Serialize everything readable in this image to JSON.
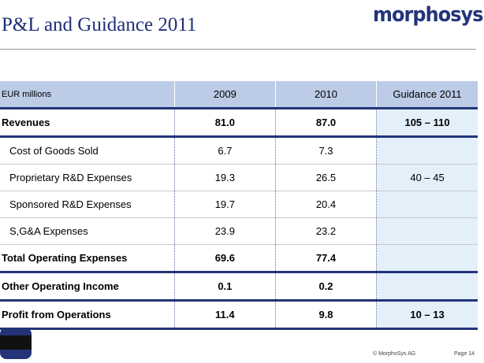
{
  "title": "P&L and Guidance 2011",
  "logo": "morphosys",
  "table": {
    "headers": [
      "EUR millions",
      "2009",
      "2010",
      "Guidance 2011"
    ],
    "rows": [
      {
        "label": "Revenues",
        "v2009": "81.0",
        "v2010": "87.0",
        "guidance": "105 – 110"
      },
      {
        "label": "Cost of Goods Sold",
        "v2009": "6.7",
        "v2010": "7.3",
        "guidance": ""
      },
      {
        "label": "Proprietary R&D Expenses",
        "v2009": "19.3",
        "v2010": "26.5",
        "guidance": "40 – 45"
      },
      {
        "label": "Sponsored R&D Expenses",
        "v2009": "19.7",
        "v2010": "20.4",
        "guidance": ""
      },
      {
        "label": "S,G&A Expenses",
        "v2009": "23.9",
        "v2010": "23.2",
        "guidance": ""
      },
      {
        "label": "Total Operating Expenses",
        "v2009": "69.6",
        "v2010": "77.4",
        "guidance": ""
      },
      {
        "label": "Other Operating Income",
        "v2009": "0.1",
        "v2010": "0.2",
        "guidance": ""
      },
      {
        "label": "Profit from Operations",
        "v2009": "11.4",
        "v2010": "9.8",
        "guidance": "10 – 13"
      }
    ]
  },
  "footer": {
    "copyright": "© MorphoSys AG",
    "page": "Page 14"
  },
  "colors": {
    "brand": "#233479",
    "header_bg": "#bccbe6",
    "guidance_bg": "#e3eff9"
  }
}
